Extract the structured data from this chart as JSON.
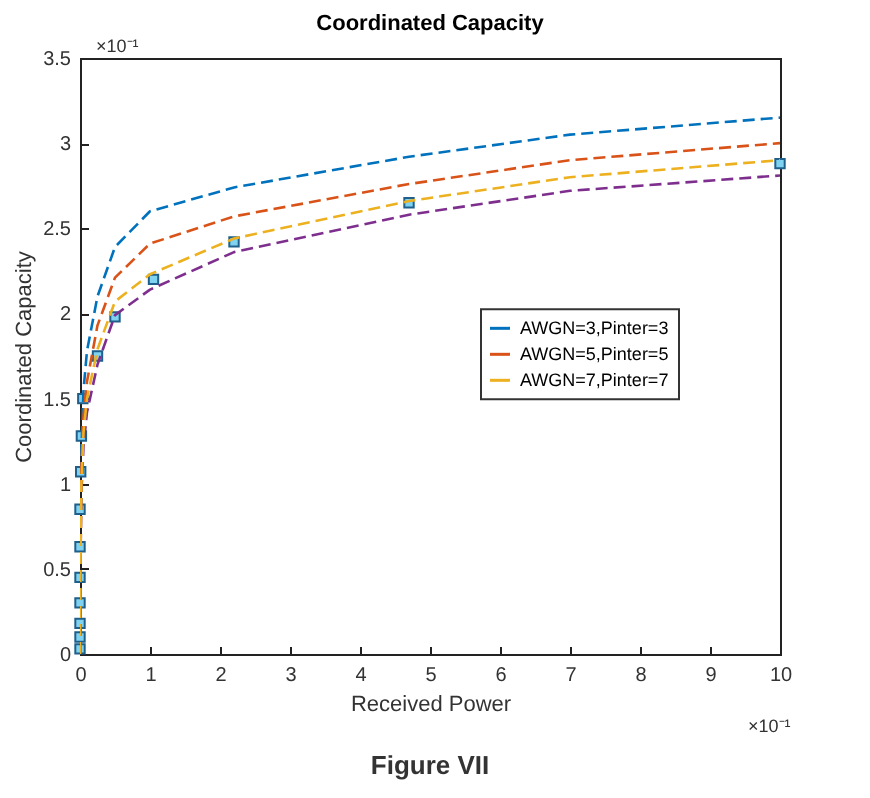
{
  "chart_data": {
    "type": "line",
    "title": "Coordinated Capacity",
    "xlabel": "Received Power",
    "ylabel": "Coordinated Capacity",
    "x": [
      0,
      0.005,
      0.02,
      0.05,
      0.1,
      0.25,
      0.5,
      1,
      2.2,
      4.7,
      7,
      10
    ],
    "series": [
      {
        "type": "scatter",
        "marker": "square",
        "color": "#7fd3f0",
        "x": [
          0,
          0,
          0,
          0,
          0,
          0,
          0,
          0.01,
          0.02,
          0.04,
          0.25,
          0.5,
          1.05,
          2.2,
          4.7,
          10
        ],
        "values": [
          0.03,
          0.1,
          0.18,
          0.3,
          0.45,
          0.63,
          0.85,
          1.07,
          1.28,
          1.5,
          1.75,
          1.98,
          2.2,
          2.42,
          2.65,
          2.88
        ]
      },
      {
        "color": "#7e2f8e",
        "values": [
          0,
          0.48,
          0.95,
          1.22,
          1.42,
          1.7,
          1.99,
          2.14,
          2.36,
          2.58,
          2.72,
          2.81
        ]
      },
      {
        "name": "AWGN=3,Pinter=3",
        "color": "#0072bd",
        "values": [
          0,
          0.6,
          1.2,
          1.55,
          1.78,
          2.1,
          2.39,
          2.6,
          2.74,
          2.92,
          3.05,
          3.15
        ]
      },
      {
        "name": "AWGN=5,Pinter=5",
        "color": "#d95319",
        "values": [
          0,
          0.55,
          1.1,
          1.4,
          1.6,
          1.93,
          2.21,
          2.41,
          2.57,
          2.76,
          2.9,
          3.0
        ]
      },
      {
        "name": "AWGN=7,Pinter=7",
        "color": "#edb120",
        "values": [
          0,
          0.5,
          1.0,
          1.3,
          1.5,
          1.79,
          2.07,
          2.23,
          2.44,
          2.66,
          2.8,
          2.9
        ]
      }
    ],
    "xlim": [
      0,
      10
    ],
    "xticks": [
      0,
      1,
      2,
      3,
      4,
      5,
      6,
      7,
      8,
      9,
      10
    ],
    "ylim": [
      0,
      3.5
    ],
    "yticks": [
      0,
      0.5,
      1,
      1.5,
      2,
      2.5,
      3,
      3.5
    ],
    "line_style": "dashed",
    "legend": "right",
    "grid": false,
    "annotations": [
      "×10⁻¹",
      "×10⁻¹",
      "Figure VII"
    ]
  }
}
